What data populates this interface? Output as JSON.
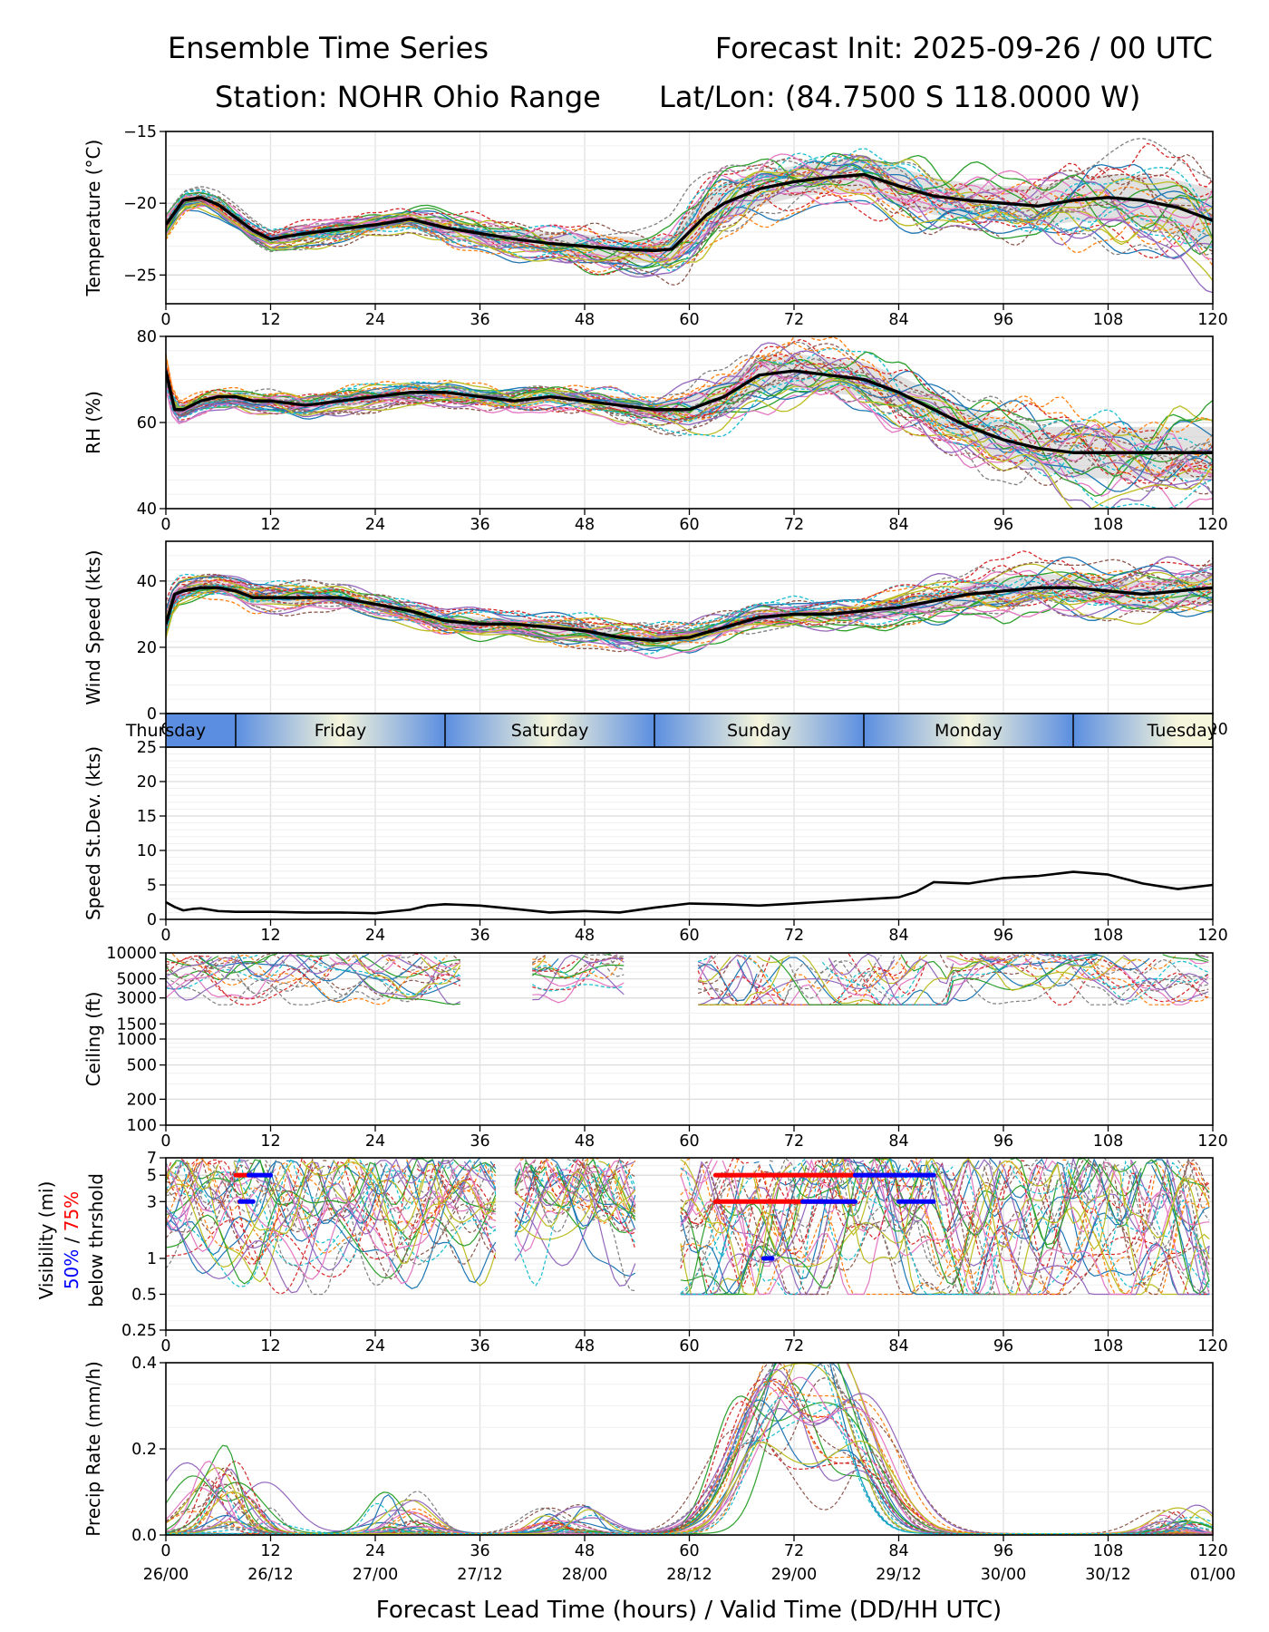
{
  "header": {
    "title_left": "Ensemble Time Series",
    "title_right": "Forecast Init: 2025-09-26 / 00 UTC",
    "station": "Station: NOHR Ohio Range",
    "latlon": "Lat/Lon: (84.7500 S 118.0000 W)"
  },
  "colors": {
    "members": [
      "#1f77b4",
      "#ff7f0e",
      "#2ca02c",
      "#d62728",
      "#9467bd",
      "#8c564b",
      "#e377c2",
      "#7f7f7f",
      "#bcbd22",
      "#17becf"
    ],
    "mean": "#000000",
    "spread": "#c8c8c8",
    "p50": "#0000ff",
    "p75": "#ff0000",
    "band_dark": "#5b8ee0",
    "band_light": "#f6f6dc"
  },
  "x_axis": {
    "lead_ticks": [
      "0",
      "12",
      "24",
      "36",
      "48",
      "60",
      "72",
      "84",
      "96",
      "108",
      "120"
    ],
    "valid_ticks": [
      "26/00",
      "26/12",
      "27/00",
      "27/12",
      "28/00",
      "28/12",
      "29/00",
      "29/12",
      "30/00",
      "30/12",
      "01/00"
    ],
    "label": "Forecast Lead Time (hours) / Valid Time (DD/HH UTC)"
  },
  "day_band": {
    "days": [
      "Thursday",
      "Friday",
      "Saturday",
      "Sunday",
      "Monday",
      "Tuesday"
    ],
    "boundaries_h": [
      8,
      32,
      56,
      80,
      104
    ]
  },
  "visibility_label": {
    "line1": "Visibility (mi)",
    "p50": "50%",
    "sep": " / ",
    "p75": "75%",
    "line3": "below thrshold"
  },
  "chart_data": [
    {
      "type": "line",
      "title": "Temperature",
      "ylabel": "Temperature (°C)",
      "ylim": [
        -27,
        -15
      ],
      "yticks": [
        "−15",
        "−20",
        "−25"
      ],
      "x": [
        0,
        2,
        4,
        6,
        8,
        10,
        12,
        16,
        20,
        24,
        28,
        32,
        36,
        40,
        44,
        48,
        52,
        56,
        58,
        60,
        62,
        64,
        68,
        72,
        76,
        80,
        84,
        88,
        92,
        96,
        100,
        104,
        108,
        112,
        116,
        120
      ],
      "mean": [
        -21.5,
        -19.8,
        -19.6,
        -20.1,
        -21.0,
        -21.9,
        -22.5,
        -22.1,
        -21.8,
        -21.5,
        -21.1,
        -21.7,
        -22.1,
        -22.5,
        -22.8,
        -23.0,
        -23.2,
        -23.3,
        -23.2,
        -22.0,
        -20.8,
        -20.0,
        -19.0,
        -18.5,
        -18.2,
        -18.0,
        -18.8,
        -19.5,
        -19.8,
        -20.0,
        -20.2,
        -19.8,
        -19.6,
        -19.8,
        -20.3,
        -21.2
      ],
      "spread": [
        0.5,
        0.4,
        0.4,
        0.4,
        0.4,
        0.4,
        0.4,
        0.5,
        0.5,
        0.5,
        0.5,
        0.6,
        0.6,
        0.7,
        0.7,
        0.8,
        0.9,
        0.9,
        1.0,
        1.3,
        1.4,
        1.4,
        1.2,
        1.1,
        1.1,
        1.2,
        1.3,
        1.3,
        1.2,
        1.2,
        1.4,
        1.5,
        1.6,
        1.7,
        1.9,
        2.2
      ],
      "members": 30
    },
    {
      "type": "line",
      "title": "RH",
      "ylabel": "RH (%)",
      "ylim": [
        40,
        80
      ],
      "yticks": [
        "80",
        "60",
        "40"
      ],
      "x": [
        0,
        1,
        2,
        4,
        6,
        8,
        10,
        12,
        16,
        20,
        24,
        28,
        32,
        36,
        40,
        44,
        48,
        52,
        56,
        60,
        64,
        68,
        72,
        76,
        80,
        84,
        88,
        92,
        96,
        100,
        104,
        108,
        112,
        116,
        120
      ],
      "mean": [
        72,
        63,
        63,
        65,
        66,
        66,
        65,
        65,
        64,
        65,
        66,
        67,
        67,
        66,
        65,
        66,
        65,
        64,
        63,
        63,
        66,
        71,
        72,
        71,
        70,
        67,
        63,
        59,
        56,
        54,
        53,
        53,
        53,
        53,
        53
      ],
      "spread": [
        2,
        1.5,
        1.5,
        1.5,
        1.5,
        1.5,
        1.5,
        1.5,
        1.5,
        1.5,
        1.5,
        1.5,
        1.5,
        1.5,
        1.5,
        1.5,
        1.5,
        2,
        2,
        3,
        4,
        4,
        4,
        4,
        4,
        4,
        4,
        4,
        5,
        5,
        6,
        6,
        6,
        6,
        6
      ],
      "members": 30
    },
    {
      "type": "line",
      "title": "Wind Speed",
      "ylabel": "Wind Speed (kts)",
      "ylim": [
        0,
        52
      ],
      "yticks": [
        "40",
        "20",
        "0"
      ],
      "x": [
        0,
        1,
        2,
        4,
        6,
        8,
        10,
        12,
        16,
        20,
        24,
        28,
        32,
        36,
        40,
        44,
        48,
        52,
        56,
        60,
        64,
        68,
        72,
        76,
        80,
        84,
        88,
        92,
        96,
        100,
        104,
        108,
        112,
        116,
        120
      ],
      "mean": [
        27,
        36,
        37,
        38,
        38,
        37,
        35,
        35,
        35,
        35,
        33,
        31,
        28,
        27,
        27,
        26,
        25,
        23,
        22,
        23,
        26,
        29,
        30,
        30,
        31,
        32,
        34,
        36,
        37,
        38,
        38,
        37,
        36,
        37,
        38
      ],
      "spread": [
        3,
        2,
        2,
        2,
        2,
        2,
        2,
        2,
        2,
        2,
        2,
        2,
        2,
        2,
        2,
        2,
        2,
        2,
        2,
        2,
        2,
        2,
        2,
        2,
        2,
        3,
        3,
        3,
        4,
        4,
        4,
        4,
        4,
        4,
        4
      ],
      "members": 30
    },
    {
      "type": "line",
      "title": "Speed St.Dev.",
      "ylabel": "Speed St.Dev. (kts)",
      "ylim": [
        0,
        25
      ],
      "yticks": [
        "25",
        "20",
        "15",
        "10",
        "5",
        "0"
      ],
      "x": [
        0,
        1,
        2,
        3,
        4,
        6,
        8,
        12,
        16,
        20,
        24,
        28,
        30,
        32,
        36,
        40,
        44,
        48,
        52,
        56,
        60,
        64,
        68,
        72,
        76,
        80,
        84,
        86,
        88,
        92,
        96,
        100,
        104,
        108,
        112,
        116,
        120
      ],
      "values": [
        2.5,
        1.8,
        1.3,
        1.5,
        1.6,
        1.2,
        1.1,
        1.1,
        1.0,
        1.0,
        0.9,
        1.4,
        2.0,
        2.2,
        2.0,
        1.5,
        1.0,
        1.2,
        1.0,
        1.7,
        2.3,
        2.2,
        2.0,
        2.3,
        2.6,
        2.9,
        3.2,
        4.0,
        5.4,
        5.2,
        6.0,
        6.3,
        6.9,
        6.5,
        5.2,
        4.4,
        5.0
      ]
    },
    {
      "type": "line",
      "title": "Ceiling",
      "ylabel": "Ceiling (ft)",
      "ylim_log": [
        100,
        10000
      ],
      "yticks": [
        "10000",
        "5000",
        "3000",
        "1500",
        "1000",
        "500",
        "200",
        "100"
      ],
      "ytick_values": [
        10000,
        5000,
        3000,
        1500,
        1000,
        500,
        200,
        100
      ],
      "members": 30,
      "active_windows_h": [
        [
          0,
          34
        ],
        [
          42,
          53
        ],
        [
          61,
          120
        ]
      ]
    },
    {
      "type": "line",
      "title": "Visibility",
      "ylabel": "Visibility (mi) 50% / 75% below thrshold",
      "ylim_log": [
        0.25,
        7
      ],
      "yticks": [
        "7",
        "5",
        "3",
        "1",
        "0.5",
        "0.25"
      ],
      "ytick_values": [
        7,
        5,
        3,
        1,
        0.5,
        0.25
      ],
      "members": 30,
      "active_windows_h": [
        [
          0,
          38
        ],
        [
          40,
          54
        ],
        [
          59,
          120
        ]
      ],
      "threshold_75pct": [
        {
          "level": 5,
          "from_h": 8,
          "to_h": 9.5
        },
        {
          "level": 5,
          "from_h": 63,
          "to_h": 83
        },
        {
          "level": 3,
          "from_h": 63,
          "to_h": 79
        }
      ],
      "threshold_50pct": [
        {
          "level": 5,
          "from_h": 9.5,
          "to_h": 12
        },
        {
          "level": 3,
          "from_h": 8.5,
          "to_h": 10
        },
        {
          "level": 5,
          "from_h": 79,
          "to_h": 88
        },
        {
          "level": 3,
          "from_h": 73,
          "to_h": 79
        },
        {
          "level": 3,
          "from_h": 84,
          "to_h": 88
        },
        {
          "level": 1,
          "from_h": 68.5,
          "to_h": 69.5
        }
      ]
    },
    {
      "type": "line",
      "title": "Precip Rate",
      "ylabel": "Precip Rate (mm/h)",
      "ylim": [
        0,
        0.4
      ],
      "yticks": [
        "0.4",
        "0.2",
        "0.0"
      ],
      "members": 30,
      "peak_events": [
        {
          "h": 5,
          "max": 0.18
        },
        {
          "h": 9,
          "max": 0.12
        },
        {
          "h": 27,
          "max": 0.1
        },
        {
          "h": 46,
          "max": 0.07
        },
        {
          "h": 68,
          "max": 0.28
        },
        {
          "h": 72,
          "max": 0.26
        },
        {
          "h": 78,
          "max": 0.33
        },
        {
          "h": 116,
          "max": 0.07
        }
      ]
    }
  ]
}
